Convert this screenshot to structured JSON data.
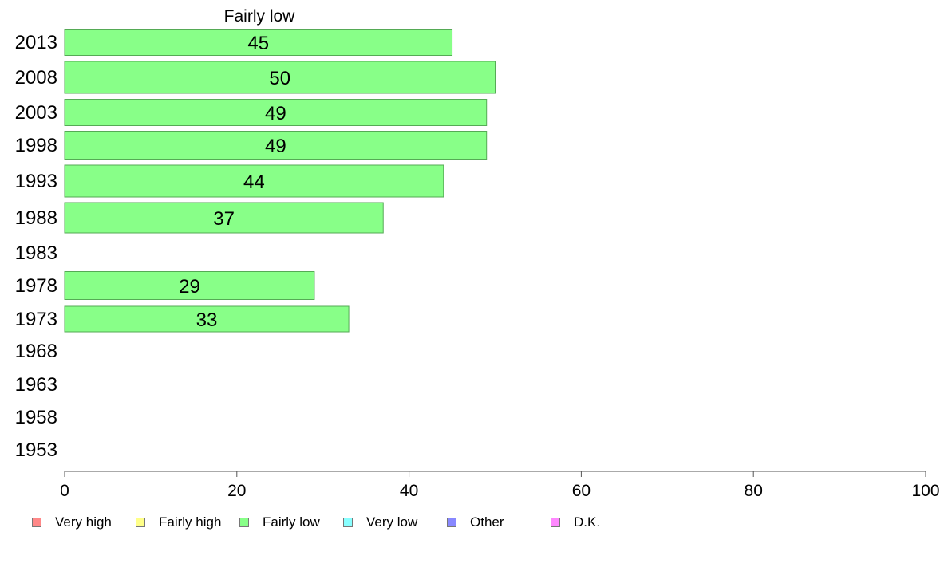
{
  "chart_data": {
    "type": "bar",
    "orientation": "horizontal",
    "title": "Fairly low",
    "xlabel": "",
    "ylabel": "",
    "xlim": [
      0,
      100
    ],
    "xticks": [
      "0",
      "20",
      "40",
      "60",
      "80",
      "100"
    ],
    "categories": [
      "2013",
      "2008",
      "2003",
      "1998",
      "1993",
      "1988",
      "1983",
      "1978",
      "1973",
      "1968",
      "1963",
      "1958",
      "1953"
    ],
    "values": [
      45,
      50,
      49,
      49,
      44,
      37,
      null,
      29,
      33,
      null,
      null,
      null,
      null
    ],
    "value_labels": [
      "45",
      "50",
      "49",
      "49",
      "44",
      "37",
      "",
      "29",
      "33",
      "",
      "",
      "",
      ""
    ],
    "bar_color": "#88ff88",
    "bar_border_color": "#55aa55",
    "grid": false,
    "legend_position": "bottom",
    "legend": [
      {
        "label": "Very high",
        "color": "#ff8888"
      },
      {
        "label": "Fairly high",
        "color": "#ffff88"
      },
      {
        "label": "Fairly low",
        "color": "#88ff88"
      },
      {
        "label": "Very low",
        "color": "#88ffff"
      },
      {
        "label": "Other",
        "color": "#8888ff"
      },
      {
        "label": "D.K.",
        "color": "#ff88ff"
      }
    ]
  }
}
